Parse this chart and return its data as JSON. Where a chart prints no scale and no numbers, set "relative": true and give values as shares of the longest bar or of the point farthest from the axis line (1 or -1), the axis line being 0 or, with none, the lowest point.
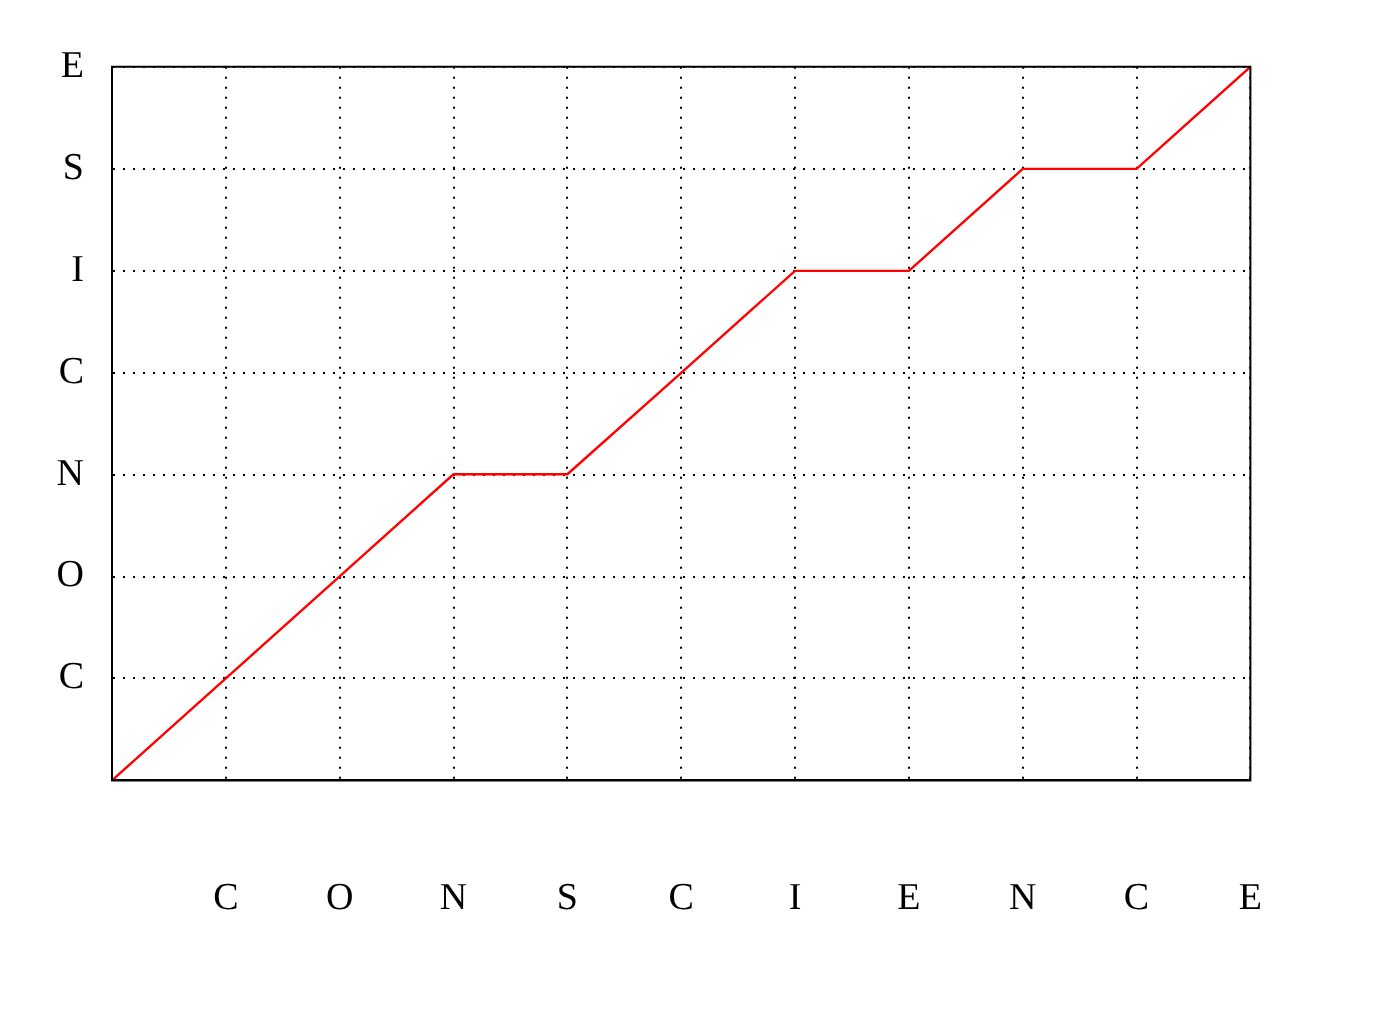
{
  "chart_data": {
    "type": "line",
    "categories": [
      null,
      "C",
      "O",
      "N",
      "S",
      "C",
      "I",
      "E",
      "N",
      "C",
      "E"
    ],
    "y_categories": [
      "E",
      "S",
      "I",
      "C",
      "N",
      "O",
      "C"
    ],
    "relative": true,
    "series": [
      {
        "color": "#ff0000",
        "values": [
          0,
          0.143,
          0.286,
          0.429,
          0.429,
          0.571,
          0.714,
          0.714,
          0.857,
          0.857,
          1
        ]
      }
    ],
    "grid": true,
    "marker": "none",
    "line_style": "solid",
    "legend": false
  }
}
